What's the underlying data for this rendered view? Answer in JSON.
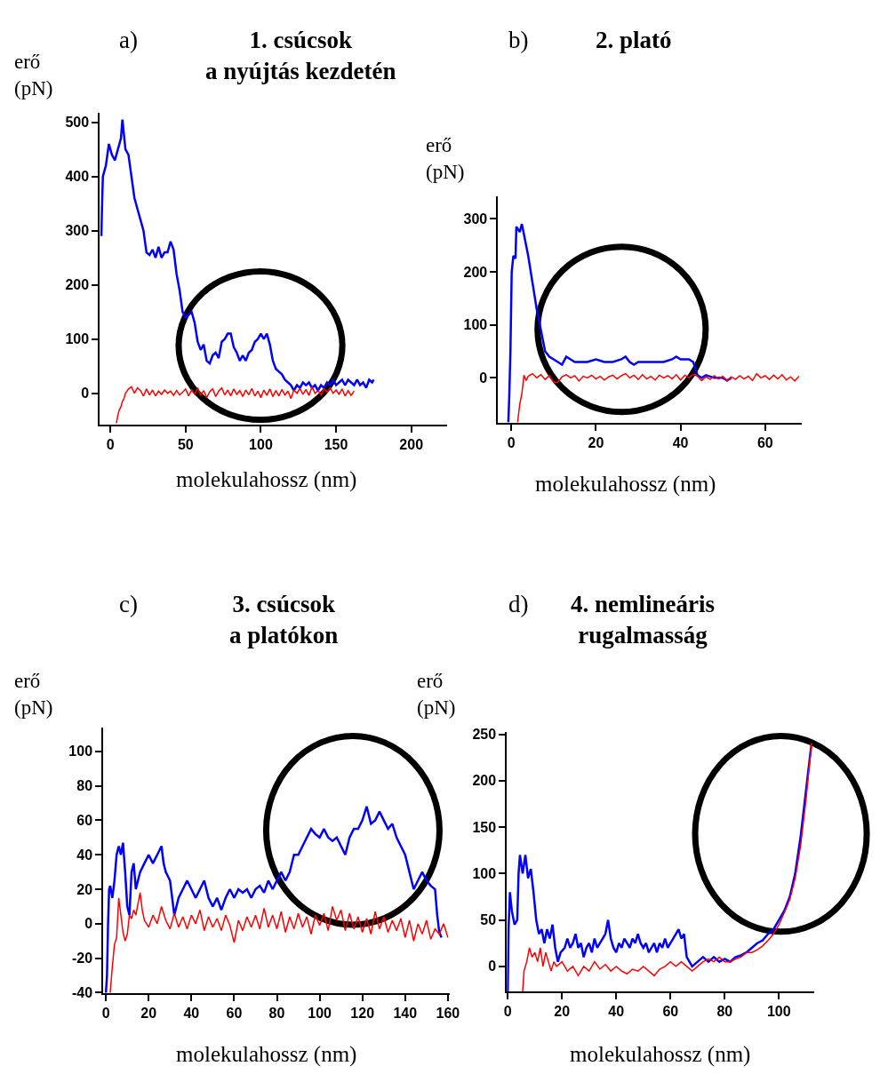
{
  "chart_data": [
    {
      "type": "line",
      "title": "1. csúcsok\na nyújtás kezdetén",
      "annotations": [
        "a)"
      ],
      "xlabel": "molekulahossz (nm)",
      "ylabel": "erő\n(pN)",
      "xlim": [
        -7,
        224
      ],
      "ylim": [
        -57,
        518
      ],
      "xticks": [
        0,
        50,
        100,
        150,
        200
      ],
      "yticks": [
        0,
        100,
        200,
        300,
        400,
        500
      ],
      "series": [
        {
          "color": "#0000ff",
          "x": [
            -6,
            -5.5,
            -5,
            -3,
            -1,
            1,
            3,
            5,
            7,
            8,
            10,
            12,
            14,
            16,
            18,
            20,
            22,
            24,
            26,
            28,
            30,
            32,
            34,
            36,
            38,
            40,
            42,
            44,
            46,
            48,
            50,
            52,
            54,
            56,
            58,
            60,
            62,
            64,
            66,
            68,
            70,
            72,
            74,
            76,
            78,
            80,
            82,
            84,
            86,
            88,
            90,
            92,
            94,
            96,
            98,
            100,
            102,
            104,
            106,
            108,
            110,
            112,
            114,
            116,
            118,
            120,
            122,
            124,
            126,
            128,
            130,
            132,
            134,
            136,
            138,
            140,
            142,
            144,
            146,
            148,
            150,
            152,
            154,
            156,
            158,
            160,
            162,
            164,
            166,
            168,
            170,
            172,
            174,
            175
          ],
          "values": [
            290,
            350,
            400,
            420,
            460,
            440,
            430,
            450,
            470,
            505,
            450,
            440,
            400,
            360,
            340,
            320,
            300,
            260,
            255,
            265,
            250,
            270,
            250,
            260,
            260,
            280,
            265,
            220,
            190,
            150,
            140,
            145,
            150,
            130,
            95,
            80,
            90,
            60,
            55,
            70,
            75,
            65,
            95,
            100,
            110,
            110,
            85,
            75,
            60,
            70,
            60,
            75,
            80,
            95,
            100,
            110,
            100,
            110,
            90,
            60,
            45,
            40,
            35,
            25,
            20,
            15,
            5,
            15,
            10,
            20,
            15,
            20,
            10,
            15,
            5,
            15,
            10,
            20,
            15,
            25,
            15,
            20,
            25,
            15,
            25,
            20,
            15,
            25,
            15,
            20,
            10,
            25,
            20,
            25
          ]
        },
        {
          "color": "#ff0000",
          "x": [
            4,
            5,
            6,
            7,
            8,
            9,
            10,
            12,
            14,
            16,
            18,
            20,
            22,
            24,
            26,
            28,
            30,
            32,
            34,
            36,
            38,
            40,
            42,
            44,
            46,
            48,
            50,
            52,
            54,
            56,
            58,
            60,
            62,
            64,
            66,
            68,
            70,
            72,
            74,
            76,
            78,
            80,
            82,
            84,
            86,
            88,
            90,
            92,
            94,
            96,
            98,
            100,
            102,
            104,
            106,
            108,
            110,
            112,
            114,
            116,
            118,
            120,
            122,
            124,
            126,
            128,
            130,
            132,
            134,
            136,
            138,
            140,
            142,
            144,
            146,
            148,
            150,
            152,
            154,
            156,
            158,
            160,
            162
          ],
          "values": [
            -55,
            -40,
            -30,
            -25,
            -15,
            -10,
            0,
            8,
            12,
            0,
            10,
            5,
            -5,
            8,
            -3,
            6,
            -5,
            4,
            -2,
            6,
            0,
            4,
            -4,
            5,
            -3,
            2,
            8,
            -5,
            6,
            -2,
            10,
            -4,
            5,
            -8,
            3,
            8,
            -6,
            4,
            10,
            -3,
            6,
            -5,
            8,
            -2,
            5,
            -6,
            6,
            -3,
            9,
            -5,
            4,
            -8,
            6,
            -4,
            8,
            -6,
            5,
            -5,
            7,
            -3,
            4,
            -10,
            6,
            0,
            9,
            -2,
            7,
            -4,
            12,
            0,
            5,
            -3,
            8,
            2,
            10,
            0,
            6,
            -2,
            8,
            -5,
            5,
            -4,
            4
          ]
        }
      ]
    },
    {
      "type": "line",
      "title": "2. plató",
      "annotations": [
        "b)"
      ],
      "xlabel": "molekulahossz (nm)",
      "ylabel": "erő\n(pN)",
      "xlim": [
        -3.1,
        68.7
      ],
      "ylim": [
        -84,
        343
      ],
      "xticks": [
        0,
        20,
        40,
        60
      ],
      "yticks": [
        0,
        100,
        200,
        300
      ],
      "series": [
        {
          "color": "#0000ff",
          "x": [
            -0.7,
            -0.5,
            -0.2,
            0,
            0.1,
            0.5,
            1,
            1.2,
            2,
            2.5,
            3,
            4,
            5,
            6,
            7,
            8,
            9,
            10,
            11,
            12,
            13,
            14,
            15,
            16,
            18,
            20,
            22,
            24,
            26,
            27,
            28,
            29,
            30,
            32,
            34,
            36,
            38,
            39,
            40,
            42,
            43,
            44,
            45,
            46,
            48,
            50,
            51,
            52
          ],
          "values": [
            -84,
            -40,
            50,
            150,
            200,
            230,
            225,
            285,
            275,
            290,
            270,
            230,
            180,
            130,
            90,
            50,
            40,
            35,
            30,
            25,
            40,
            35,
            30,
            30,
            30,
            35,
            30,
            30,
            35,
            40,
            30,
            25,
            30,
            30,
            30,
            30,
            35,
            40,
            35,
            35,
            30,
            5,
            0,
            5,
            0,
            0,
            -5,
            0
          ]
        },
        {
          "color": "#ff0000",
          "x": [
            1.5,
            2,
            2.5,
            3,
            3.5,
            4,
            5,
            6,
            7,
            8,
            9,
            10,
            11,
            12,
            13,
            14,
            15,
            16,
            17,
            18,
            19,
            20,
            21,
            22,
            23,
            24,
            25,
            26,
            27,
            28,
            29,
            30,
            31,
            32,
            33,
            34,
            35,
            36,
            37,
            38,
            39,
            40,
            41,
            42,
            43,
            44,
            45,
            46,
            47,
            48,
            49,
            50,
            51,
            52,
            53,
            54,
            55,
            56,
            57,
            58,
            59,
            60,
            61,
            62,
            63,
            64,
            65,
            66,
            67,
            68
          ],
          "values": [
            -84,
            -50,
            -30,
            5,
            -5,
            3,
            8,
            0,
            6,
            -3,
            4,
            -8,
            -8,
            2,
            6,
            0,
            4,
            -6,
            3,
            0,
            5,
            -2,
            3,
            -4,
            2,
            5,
            -2,
            4,
            8,
            0,
            5,
            -3,
            6,
            -2,
            3,
            -4,
            5,
            0,
            4,
            -2,
            6,
            -4,
            5,
            0,
            7,
            3,
            -5,
            2,
            -3,
            4,
            -2,
            3,
            -6,
            2,
            -3,
            4,
            -2,
            3,
            -5,
            8,
            0,
            4,
            -3,
            5,
            -2,
            6,
            -4,
            2,
            -6,
            3
          ]
        }
      ]
    },
    {
      "type": "line",
      "title": "3. csúcsok\na platókon",
      "annotations": [
        "c)"
      ],
      "xlabel": "molekulahossz (nm)",
      "ylabel": "erő\n(pN)",
      "xlim": [
        -1.2,
        161
      ],
      "ylim": [
        -40.3,
        114
      ],
      "xticks": [
        0,
        20,
        40,
        60,
        80,
        100,
        120,
        140,
        160
      ],
      "yticks": [
        -40,
        -20,
        0,
        20,
        40,
        60,
        80,
        100
      ],
      "series": [
        {
          "color": "#0000ff",
          "x": [
            0,
            0.5,
            1,
            1.5,
            2,
            3,
            4,
            5,
            6,
            7,
            8,
            9,
            10,
            11,
            12,
            13,
            14,
            15,
            16,
            18,
            20,
            22,
            24,
            26,
            27,
            28,
            30,
            31,
            32,
            34,
            36,
            38,
            40,
            42,
            44,
            46,
            48,
            50,
            52,
            54,
            56,
            58,
            60,
            62,
            64,
            66,
            68,
            70,
            72,
            74,
            76,
            78,
            80,
            82,
            84,
            86,
            88,
            90,
            92,
            94,
            96,
            98,
            100,
            102,
            104,
            106,
            108,
            110,
            112,
            114,
            116,
            118,
            120,
            122,
            124,
            126,
            128,
            130,
            132,
            134,
            136,
            138,
            140,
            142,
            144,
            146,
            148,
            150,
            152,
            154,
            155,
            156,
            157
          ],
          "values": [
            -40,
            -30,
            0,
            20,
            22,
            15,
            25,
            40,
            45,
            40,
            47,
            30,
            10,
            5,
            30,
            35,
            20,
            25,
            30,
            35,
            40,
            35,
            40,
            45,
            35,
            30,
            25,
            15,
            5,
            15,
            20,
            25,
            20,
            15,
            20,
            25,
            15,
            10,
            15,
            8,
            15,
            20,
            15,
            20,
            18,
            20,
            15,
            20,
            22,
            18,
            25,
            20,
            25,
            30,
            25,
            30,
            40,
            40,
            45,
            50,
            55,
            52,
            50,
            55,
            50,
            48,
            50,
            45,
            40,
            50,
            55,
            55,
            60,
            68,
            58,
            60,
            65,
            60,
            55,
            58,
            50,
            45,
            40,
            30,
            20,
            25,
            30,
            25,
            22,
            20,
            5,
            -5,
            -8
          ]
        },
        {
          "color": "#ff0000",
          "x": [
            2,
            3,
            4,
            5,
            6,
            7,
            8,
            9,
            10,
            11,
            12,
            13,
            14,
            16,
            17,
            18,
            20,
            22,
            24,
            26,
            28,
            30,
            32,
            34,
            36,
            38,
            40,
            42,
            44,
            46,
            48,
            50,
            52,
            54,
            56,
            58,
            60,
            62,
            64,
            66,
            68,
            70,
            72,
            74,
            76,
            78,
            80,
            82,
            84,
            86,
            88,
            90,
            92,
            94,
            96,
            98,
            100,
            102,
            104,
            106,
            108,
            110,
            112,
            114,
            116,
            118,
            120,
            122,
            124,
            126,
            128,
            130,
            132,
            134,
            136,
            138,
            140,
            142,
            144,
            146,
            148,
            150,
            152,
            154,
            156,
            158,
            160
          ],
          "values": [
            -40,
            -25,
            -12,
            -8,
            15,
            5,
            -5,
            -10,
            -6,
            5,
            3,
            8,
            5,
            18,
            8,
            2,
            -2,
            5,
            0,
            10,
            2,
            -3,
            6,
            -2,
            4,
            -3,
            5,
            0,
            8,
            -4,
            4,
            -2,
            3,
            -4,
            5,
            -1,
            -11,
            2,
            -4,
            4,
            -2,
            5,
            -3,
            9,
            -2,
            5,
            -3,
            7,
            -5,
            4,
            -3,
            6,
            -2,
            4,
            -6,
            5,
            -1,
            6,
            -4,
            10,
            2,
            8,
            -4,
            6,
            -3,
            4,
            -5,
            3,
            -6,
            7,
            -3,
            4,
            -5,
            2,
            -4,
            3,
            -8,
            2,
            -10,
            0,
            -6,
            2,
            -9,
            -3,
            -6,
            0,
            -8
          ]
        }
      ]
    },
    {
      "type": "line",
      "title": "4. nemlineáris\nrugalmasság",
      "annotations": [
        "d)"
      ],
      "xlabel": "molekulahossz (nm)",
      "ylabel": "erő\n(pN)",
      "xlim": [
        -0.3,
        113
      ],
      "ylim": [
        -27,
        252
      ],
      "xticks": [
        0,
        20,
        40,
        60,
        80,
        100
      ],
      "yticks": [
        0,
        50,
        100,
        150,
        200,
        250
      ],
      "series": [
        {
          "color": "#0000ff",
          "x": [
            0,
            0.3,
            0.8,
            1.5,
            2.5,
            3.5,
            4,
            4.5,
            5.5,
            6.5,
            7.5,
            8.5,
            9.5,
            10.5,
            11.5,
            12.5,
            13.5,
            14.5,
            15.5,
            16.5,
            17.5,
            18.5,
            19.5,
            21,
            22,
            23,
            24,
            25,
            26,
            27,
            28,
            29,
            30,
            31,
            32,
            33,
            34,
            35,
            36,
            37,
            38,
            39,
            40,
            41,
            42,
            43,
            44,
            45,
            46,
            47,
            48,
            49,
            50,
            51,
            52,
            53,
            54,
            55,
            56,
            57,
            58,
            59,
            60,
            61,
            62,
            63,
            64,
            65,
            66,
            67,
            68,
            70,
            72,
            74,
            76,
            78,
            80,
            82,
            84,
            86,
            88,
            90,
            92,
            94,
            96,
            98,
            100,
            102,
            104,
            106,
            108,
            110,
            112
          ],
          "values": [
            -27,
            40,
            80,
            60,
            45,
            50,
            100,
            120,
            100,
            120,
            95,
            105,
            80,
            50,
            35,
            40,
            25,
            40,
            30,
            45,
            20,
            5,
            15,
            20,
            30,
            20,
            25,
            35,
            20,
            25,
            10,
            20,
            25,
            15,
            30,
            20,
            25,
            30,
            35,
            50,
            30,
            20,
            15,
            25,
            20,
            30,
            25,
            20,
            30,
            25,
            35,
            25,
            20,
            25,
            15,
            20,
            25,
            15,
            25,
            20,
            30,
            20,
            25,
            30,
            35,
            40,
            30,
            35,
            10,
            5,
            0,
            5,
            10,
            5,
            10,
            5,
            8,
            5,
            10,
            12,
            15,
            20,
            25,
            28,
            35,
            40,
            50,
            60,
            75,
            100,
            140,
            190,
            240
          ]
        },
        {
          "color": "#ff0000",
          "x": [
            5.5,
            6,
            7,
            8,
            9,
            10,
            11,
            12,
            13,
            14,
            15,
            16,
            17,
            18,
            20,
            22,
            24,
            26,
            28,
            30,
            32,
            34,
            36,
            38,
            40,
            42,
            44,
            46,
            48,
            50,
            52,
            54,
            56,
            58,
            60,
            62,
            64,
            66,
            68,
            70,
            72,
            74,
            76,
            78,
            80,
            82,
            84,
            86,
            88,
            90,
            92,
            94,
            96,
            98,
            100,
            102,
            104,
            106,
            108,
            110,
            112
          ],
          "values": [
            -27,
            -5,
            5,
            20,
            10,
            15,
            5,
            20,
            0,
            15,
            5,
            -5,
            5,
            0,
            5,
            -5,
            0,
            -10,
            0,
            -5,
            5,
            -3,
            2,
            -5,
            0,
            -5,
            -8,
            -3,
            -5,
            0,
            -5,
            -10,
            -3,
            0,
            5,
            0,
            5,
            0,
            -5,
            0,
            5,
            8,
            5,
            10,
            5,
            5,
            8,
            10,
            15,
            15,
            18,
            22,
            28,
            35,
            45,
            58,
            72,
            95,
            130,
            180,
            240
          ]
        }
      ]
    }
  ]
}
